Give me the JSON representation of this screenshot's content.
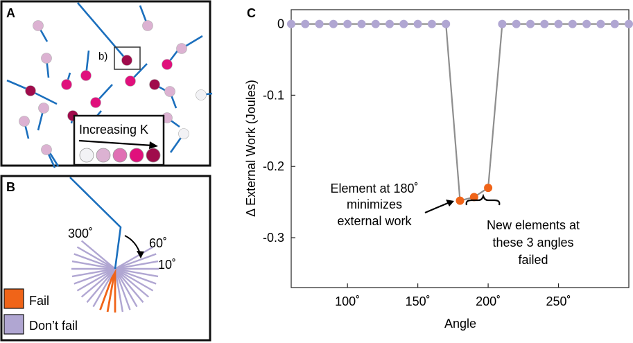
{
  "panels": {
    "a": {
      "letter": "A",
      "inset_label": "b)",
      "legend_title": "Increasing K",
      "k_colors": [
        "#f2f2f5",
        "#dcb2d2",
        "#e070b4",
        "#e0107c",
        "#a00c4c"
      ]
    },
    "b": {
      "letter": "B",
      "angle_labels": [
        "300˚",
        "60˚",
        "10˚"
      ],
      "legend": [
        {
          "label": "Fail",
          "color": "#f06418"
        },
        {
          "label": "Don’t fail",
          "color": "#b0a6d2"
        }
      ]
    },
    "c": {
      "letter": "C"
    }
  },
  "colors": {
    "line": "#8e8e8e",
    "point": "#b0a6d2",
    "failed_point": "#f06418",
    "needle": "#1b6fbd"
  },
  "chart_data": {
    "type": "line",
    "title": "",
    "xlabel": "Angle",
    "ylabel": "Δ External Work (Joules)",
    "xlim": [
      60,
      300
    ],
    "ylim": [
      -0.37,
      0.02
    ],
    "xticks": [
      100,
      150,
      200,
      250
    ],
    "xtick_labels": [
      "100˚",
      "150˚",
      "200˚",
      "250˚"
    ],
    "yticks": [
      0,
      -0.1,
      -0.2,
      -0.3
    ],
    "ytick_labels": [
      "0",
      "-0.1",
      "-0.2",
      "-0.3"
    ],
    "x": [
      60,
      70,
      80,
      90,
      100,
      110,
      120,
      130,
      140,
      150,
      160,
      170,
      180,
      190,
      200,
      210,
      220,
      230,
      240,
      250,
      260,
      270,
      280,
      290,
      300
    ],
    "y": [
      0,
      0,
      0,
      0,
      0,
      0,
      0,
      0,
      0,
      0,
      0,
      0,
      -0.248,
      -0.243,
      -0.23,
      0,
      0,
      0,
      0,
      0,
      0,
      0,
      0,
      0,
      0
    ],
    "failed_x": [
      180,
      190,
      200
    ],
    "annotations": [
      {
        "lines": [
          "Element at 180˚",
          "minimizes",
          "external work"
        ]
      },
      {
        "lines": [
          "New elements at",
          "these 3 angles",
          "failed"
        ]
      }
    ]
  }
}
